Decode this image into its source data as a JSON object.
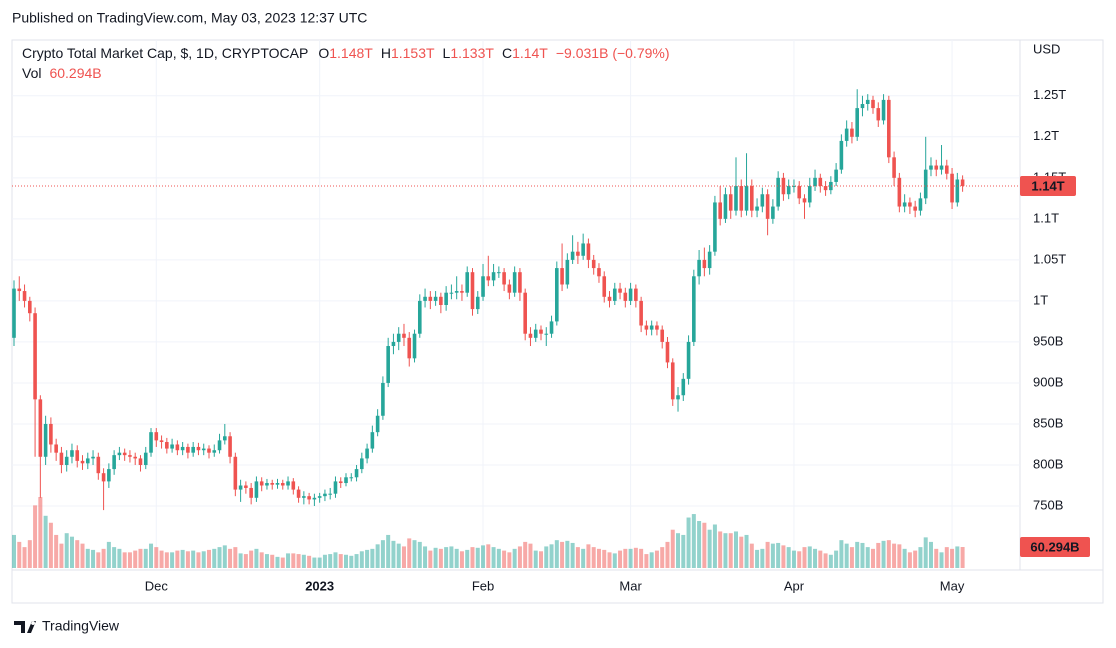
{
  "chart_data": {
    "type": "candlestick",
    "published": "Published on TradingView.com, May 03, 2023 12:37 UTC",
    "title": "Crypto Total Market Cap, $, 1D, CRYPTOCAP",
    "ohlc_legend": [
      {
        "key": "O",
        "value": "1.148T"
      },
      {
        "key": "H",
        "value": "1.153T"
      },
      {
        "key": "L",
        "value": "1.133T"
      },
      {
        "key": "C",
        "value": "1.14T"
      }
    ],
    "change": "−9.031B (−0.79%)",
    "volume_legend": {
      "key": "Vol",
      "value": "60.294B"
    },
    "currency": "USD",
    "last_price": 1140,
    "last_price_label": "1.14T",
    "last_volume_label": "60.294B",
    "brand": "TradingView",
    "up_color": "#26a69a",
    "down_color": "#ef5350",
    "grid": true,
    "ylim": [
      672,
      1318
    ],
    "yticks": [
      {
        "value": 1250,
        "label": "1.25T"
      },
      {
        "value": 1200,
        "label": "1.2T"
      },
      {
        "value": 1150,
        "label": "1.15T"
      },
      {
        "value": 1100,
        "label": "1.1T"
      },
      {
        "value": 1050,
        "label": "1.05T"
      },
      {
        "value": 1000,
        "label": "1T"
      },
      {
        "value": 950,
        "label": "950B"
      },
      {
        "value": 900,
        "label": "900B"
      },
      {
        "value": 850,
        "label": "850B"
      },
      {
        "value": 800,
        "label": "800B"
      },
      {
        "value": 750,
        "label": "750B"
      }
    ],
    "categories": [
      null,
      null,
      null,
      null,
      null,
      null,
      null,
      null,
      null,
      null,
      null,
      null,
      null,
      null,
      null,
      null,
      null,
      null,
      null,
      null,
      null,
      null,
      null,
      null,
      null,
      null,
      null,
      "Dec",
      null,
      null,
      null,
      null,
      null,
      null,
      null,
      null,
      null,
      null,
      null,
      null,
      null,
      null,
      null,
      null,
      null,
      null,
      null,
      null,
      null,
      null,
      null,
      null,
      null,
      null,
      null,
      null,
      null,
      null,
      "2023",
      null,
      null,
      null,
      null,
      null,
      null,
      null,
      null,
      null,
      null,
      null,
      null,
      null,
      null,
      null,
      null,
      null,
      null,
      null,
      null,
      null,
      null,
      null,
      null,
      null,
      null,
      null,
      null,
      null,
      null,
      "Feb",
      null,
      null,
      null,
      null,
      null,
      null,
      null,
      null,
      null,
      null,
      null,
      null,
      null,
      null,
      null,
      null,
      null,
      null,
      null,
      null,
      null,
      null,
      null,
      null,
      null,
      null,
      null,
      "Mar",
      null,
      null,
      null,
      null,
      null,
      null,
      null,
      null,
      null,
      null,
      null,
      null,
      null,
      null,
      null,
      null,
      null,
      null,
      null,
      null,
      null,
      null,
      null,
      null,
      null,
      null,
      null,
      null,
      null,
      null,
      "Apr",
      null,
      null,
      null,
      null,
      null,
      null,
      null,
      null,
      null,
      null,
      null,
      null,
      null,
      null,
      null,
      null,
      null,
      null,
      null,
      null,
      null,
      null,
      null,
      null,
      null,
      null,
      null,
      null,
      null,
      "May",
      null,
      null
    ],
    "open": [
      955,
      1015,
      1012,
      1000,
      985,
      880,
      810,
      850,
      825,
      815,
      800,
      810,
      818,
      805,
      802,
      808,
      810,
      790,
      780,
      795,
      812,
      815,
      812,
      810,
      808,
      800,
      815,
      840,
      830,
      828,
      820,
      825,
      818,
      822,
      815,
      822,
      818,
      820,
      815,
      818,
      830,
      835,
      810,
      770,
      775,
      772,
      760,
      780,
      775,
      778,
      776,
      778,
      775,
      780,
      770,
      760,
      762,
      758,
      760,
      762,
      765,
      765,
      780,
      778,
      785,
      785,
      795,
      808,
      820,
      840,
      860,
      900,
      945,
      950,
      960,
      955,
      930,
      960,
      1000,
      1005,
      1000,
      1005,
      995,
      1010,
      1010,
      1012,
      1010,
      1035,
      990,
      1005,
      1030,
      1025,
      1035,
      1035,
      1020,
      1010,
      1035,
      1010,
      960,
      955,
      965,
      960,
      960,
      975,
      1040,
      1020,
      1050,
      1060,
      1055,
      1070,
      1050,
      1040,
      1030,
      1005,
      1000,
      1015,
      1010,
      1000,
      1015,
      1000,
      970,
      965,
      970,
      965,
      950,
      925,
      880,
      885,
      905,
      950,
      1030,
      1050,
      1040,
      1060,
      1120,
      1100,
      1130,
      1110,
      1140,
      1110,
      1140,
      1110,
      1115,
      1130,
      1100,
      1115,
      1150,
      1130,
      1140,
      1140,
      1125,
      1120,
      1140,
      1150,
      1140,
      1135,
      1145,
      1160,
      1195,
      1210,
      1200,
      1235,
      1240,
      1245,
      1235,
      1220,
      1245,
      1175,
      1150,
      1115,
      1120,
      1115,
      1110,
      1125,
      1160,
      1165,
      1160,
      1165,
      1155,
      1120,
      1148
    ],
    "high": [
      1025,
      1030,
      1020,
      1005,
      992,
      885,
      860,
      858,
      832,
      822,
      818,
      826,
      824,
      812,
      815,
      818,
      815,
      796,
      802,
      818,
      822,
      820,
      818,
      815,
      812,
      822,
      845,
      845,
      836,
      833,
      832,
      830,
      828,
      826,
      828,
      827,
      826,
      824,
      825,
      838,
      850,
      840,
      815,
      782,
      780,
      778,
      786,
      785,
      783,
      782,
      783,
      782,
      786,
      784,
      774,
      768,
      766,
      765,
      766,
      770,
      772,
      786,
      785,
      790,
      790,
      800,
      815,
      826,
      848,
      868,
      908,
      955,
      960,
      968,
      972,
      962,
      965,
      1008,
      1015,
      1012,
      1012,
      1010,
      1018,
      1020,
      1030,
      1020,
      1042,
      1040,
      1012,
      1045,
      1055,
      1045,
      1042,
      1040,
      1026,
      1042,
      1040,
      1015,
      968,
      972,
      970,
      968,
      982,
      1048,
      1070,
      1058,
      1080,
      1072,
      1082,
      1076,
      1056,
      1046,
      1036,
      1012,
      1022,
      1022,
      1016,
      1022,
      1020,
      1005,
      976,
      976,
      975,
      970,
      956,
      930,
      895,
      912,
      958,
      1038,
      1062,
      1065,
      1068,
      1128,
      1140,
      1138,
      1140,
      1175,
      1148,
      1180,
      1148,
      1125,
      1138,
      1136,
      1124,
      1158,
      1156,
      1148,
      1148,
      1146,
      1130,
      1150,
      1160,
      1155,
      1146,
      1152,
      1168,
      1203,
      1220,
      1218,
      1258,
      1250,
      1252,
      1250,
      1242,
      1252,
      1250,
      1182,
      1156,
      1130,
      1126,
      1122,
      1132,
      1200,
      1175,
      1172,
      1190,
      1172,
      1162,
      1156,
      1153
    ],
    "low": [
      945,
      1000,
      992,
      975,
      810,
      760,
      800,
      815,
      805,
      790,
      792,
      802,
      797,
      794,
      795,
      800,
      782,
      745,
      772,
      788,
      806,
      805,
      803,
      800,
      792,
      795,
      810,
      822,
      820,
      814,
      815,
      812,
      812,
      808,
      810,
      812,
      812,
      808,
      810,
      814,
      825,
      802,
      762,
      755,
      765,
      752,
      755,
      768,
      770,
      770,
      771,
      770,
      770,
      764,
      754,
      752,
      752,
      750,
      754,
      756,
      758,
      760,
      772,
      774,
      780,
      780,
      790,
      802,
      815,
      835,
      855,
      895,
      935,
      940,
      945,
      920,
      925,
      955,
      992,
      990,
      994,
      985,
      988,
      1002,
      1002,
      1000,
      1005,
      982,
      984,
      1000,
      1018,
      1018,
      1028,
      1012,
      1002,
      1005,
      1000,
      952,
      945,
      950,
      952,
      945,
      955,
      970,
      1012,
      1015,
      1045,
      1045,
      1050,
      1040,
      1032,
      1022,
      998,
      992,
      995,
      1002,
      992,
      995,
      992,
      962,
      958,
      958,
      958,
      942,
      918,
      872,
      865,
      878,
      898,
      945,
      1020,
      1030,
      1032,
      1055,
      1092,
      1095,
      1100,
      1104,
      1102,
      1104,
      1102,
      1102,
      1108,
      1080,
      1094,
      1110,
      1122,
      1124,
      1132,
      1118,
      1100,
      1114,
      1134,
      1132,
      1128,
      1130,
      1140,
      1155,
      1188,
      1192,
      1195,
      1225,
      1232,
      1228,
      1212,
      1215,
      1168,
      1140,
      1108,
      1108,
      1106,
      1102,
      1104,
      1118,
      1152,
      1152,
      1154,
      1148,
      1112,
      1115,
      1133
    ],
    "close": [
      1015,
      1012,
      1000,
      985,
      880,
      810,
      850,
      825,
      815,
      800,
      810,
      818,
      805,
      802,
      808,
      810,
      790,
      780,
      795,
      812,
      815,
      812,
      810,
      808,
      800,
      815,
      840,
      830,
      828,
      820,
      825,
      818,
      822,
      815,
      822,
      818,
      820,
      815,
      818,
      830,
      835,
      810,
      770,
      775,
      772,
      760,
      780,
      775,
      778,
      776,
      778,
      775,
      780,
      770,
      760,
      762,
      758,
      760,
      762,
      765,
      765,
      780,
      778,
      785,
      785,
      795,
      808,
      820,
      840,
      860,
      900,
      945,
      950,
      960,
      955,
      930,
      960,
      1000,
      1005,
      1000,
      1005,
      995,
      1010,
      1010,
      1012,
      1010,
      1035,
      990,
      1005,
      1030,
      1025,
      1035,
      1035,
      1020,
      1010,
      1035,
      1010,
      960,
      955,
      965,
      960,
      960,
      975,
      1040,
      1020,
      1050,
      1060,
      1055,
      1070,
      1050,
      1040,
      1030,
      1005,
      1000,
      1015,
      1010,
      1000,
      1015,
      1000,
      970,
      965,
      970,
      965,
      950,
      925,
      880,
      885,
      905,
      950,
      1030,
      1050,
      1040,
      1060,
      1120,
      1100,
      1130,
      1110,
      1140,
      1110,
      1140,
      1110,
      1115,
      1130,
      1100,
      1115,
      1150,
      1130,
      1140,
      1140,
      1125,
      1120,
      1140,
      1150,
      1140,
      1135,
      1145,
      1160,
      1195,
      1210,
      1200,
      1235,
      1240,
      1245,
      1235,
      1220,
      1245,
      1175,
      1150,
      1115,
      1120,
      1115,
      1110,
      1125,
      1160,
      1165,
      1160,
      1165,
      1155,
      1120,
      1148,
      1140
    ],
    "volume": [
      95,
      75,
      60,
      80,
      180,
      204,
      150,
      130,
      95,
      70,
      100,
      90,
      80,
      70,
      55,
      52,
      45,
      55,
      75,
      60,
      55,
      45,
      45,
      50,
      55,
      55,
      70,
      60,
      50,
      45,
      45,
      50,
      52,
      48,
      50,
      45,
      48,
      52,
      55,
      60,
      65,
      55,
      60,
      42,
      40,
      50,
      55,
      45,
      40,
      38,
      32,
      30,
      42,
      42,
      40,
      38,
      35,
      30,
      30,
      38,
      40,
      45,
      40,
      38,
      35,
      40,
      48,
      52,
      55,
      68,
      80,
      95,
      78,
      70,
      62,
      85,
      80,
      75,
      62,
      50,
      58,
      55,
      60,
      62,
      55,
      48,
      52,
      60,
      58,
      65,
      68,
      60,
      55,
      50,
      45,
      55,
      62,
      75,
      70,
      50,
      48,
      62,
      68,
      80,
      75,
      78,
      72,
      60,
      55,
      68,
      60,
      55,
      52,
      45,
      42,
      50,
      55,
      55,
      58,
      55,
      40,
      45,
      50,
      60,
      75,
      110,
      100,
      95,
      145,
      155,
      135,
      130,
      110,
      125,
      105,
      100,
      100,
      105,
      90,
      95,
      70,
      52,
      55,
      75,
      70,
      72,
      65,
      60,
      50,
      48,
      60,
      62,
      55,
      50,
      42,
      38,
      50,
      80,
      70,
      60,
      75,
      72,
      60,
      55,
      72,
      78,
      80,
      70,
      68,
      55,
      45,
      50,
      60,
      88,
      75,
      55,
      45,
      60,
      55,
      62,
      60.294
    ]
  }
}
